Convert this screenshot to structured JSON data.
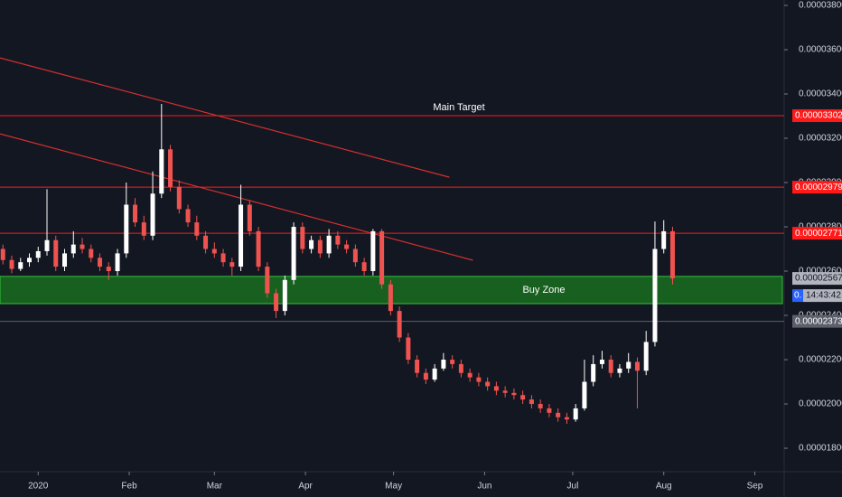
{
  "chart_data": {
    "type": "candlestick",
    "x": [
      -15,
      -12,
      -9,
      -6,
      -3,
      0,
      3,
      6,
      9,
      12,
      15,
      18,
      21,
      24,
      27,
      30,
      33,
      36,
      39,
      42,
      45,
      48,
      51,
      54,
      57,
      60,
      63,
      66,
      69,
      72,
      75,
      78,
      81,
      84,
      87,
      90,
      93,
      96,
      99,
      102,
      105,
      108,
      111,
      114,
      117,
      120,
      123,
      126,
      129,
      132,
      135,
      138,
      141,
      144,
      147,
      150,
      153,
      156,
      159,
      162,
      165,
      168,
      171,
      174,
      177,
      180,
      183,
      186,
      189,
      192,
      195,
      198,
      201,
      204,
      207,
      210,
      213,
      216
    ],
    "ohlc": [
      [
        2.72e-05,
        2.75e-05,
        2.68e-05,
        2.7e-05
      ],
      [
        2.7e-05,
        2.72e-05,
        2.63e-05,
        2.65e-05
      ],
      [
        2.65e-05,
        2.67e-05,
        2.59e-05,
        2.61e-05
      ],
      [
        2.61e-05,
        2.66e-05,
        2.6e-05,
        2.64e-05
      ],
      [
        2.64e-05,
        2.68e-05,
        2.62e-05,
        2.66e-05
      ],
      [
        2.66e-05,
        2.71e-05,
        2.64e-05,
        2.69e-05
      ],
      [
        2.69e-05,
        2.97e-05,
        2.67e-05,
        2.74e-05
      ],
      [
        2.74e-05,
        2.76e-05,
        2.6e-05,
        2.62e-05
      ],
      [
        2.62e-05,
        2.7e-05,
        2.6e-05,
        2.68e-05
      ],
      [
        2.68e-05,
        2.78e-05,
        2.66e-05,
        2.72e-05
      ],
      [
        2.72e-05,
        2.75e-05,
        2.68e-05,
        2.7e-05
      ],
      [
        2.7e-05,
        2.72e-05,
        2.64e-05,
        2.66e-05
      ],
      [
        2.66e-05,
        2.68e-05,
        2.6e-05,
        2.62e-05
      ],
      [
        2.62e-05,
        2.64e-05,
        2.56e-05,
        2.6e-05
      ],
      [
        2.6e-05,
        2.7e-05,
        2.58e-05,
        2.68e-05
      ],
      [
        2.68e-05,
        3e-05,
        2.66e-05,
        2.9e-05
      ],
      [
        2.9e-05,
        2.93e-05,
        2.8e-05,
        2.82e-05
      ],
      [
        2.82e-05,
        2.85e-05,
        2.74e-05,
        2.76e-05
      ],
      [
        2.76e-05,
        3.05e-05,
        2.74e-05,
        2.95e-05
      ],
      [
        2.95e-05,
        3.355e-05,
        2.93e-05,
        3.15e-05
      ],
      [
        3.15e-05,
        3.17e-05,
        2.96e-05,
        2.98e-05
      ],
      [
        2.98e-05,
        3.01e-05,
        2.86e-05,
        2.88e-05
      ],
      [
        2.88e-05,
        2.9e-05,
        2.8e-05,
        2.82e-05
      ],
      [
        2.82e-05,
        2.85e-05,
        2.74e-05,
        2.76e-05
      ],
      [
        2.76e-05,
        2.78e-05,
        2.68e-05,
        2.7e-05
      ],
      [
        2.7e-05,
        2.73e-05,
        2.66e-05,
        2.68e-05
      ],
      [
        2.68e-05,
        2.7e-05,
        2.62e-05,
        2.64e-05
      ],
      [
        2.64e-05,
        2.66e-05,
        2.58e-05,
        2.62e-05
      ],
      [
        2.62e-05,
        2.99e-05,
        2.6e-05,
        2.9e-05
      ],
      [
        2.9e-05,
        2.92e-05,
        2.76e-05,
        2.78e-05
      ],
      [
        2.78e-05,
        2.8e-05,
        2.6e-05,
        2.62e-05
      ],
      [
        2.62e-05,
        2.64e-05,
        2.48e-05,
        2.5e-05
      ],
      [
        2.5e-05,
        2.52e-05,
        2.388e-05,
        2.42e-05
      ],
      [
        2.42e-05,
        2.58e-05,
        2.4e-05,
        2.56e-05
      ],
      [
        2.56e-05,
        2.82e-05,
        2.54e-05,
        2.8e-05
      ],
      [
        2.8e-05,
        2.82e-05,
        2.68e-05,
        2.7e-05
      ],
      [
        2.7e-05,
        2.76e-05,
        2.68e-05,
        2.74e-05
      ],
      [
        2.74e-05,
        2.76e-05,
        2.66e-05,
        2.68e-05
      ],
      [
        2.68e-05,
        2.79e-05,
        2.66e-05,
        2.76e-05
      ],
      [
        2.76e-05,
        2.78e-05,
        2.7e-05,
        2.72e-05
      ],
      [
        2.72e-05,
        2.74e-05,
        2.68e-05,
        2.7e-05
      ],
      [
        2.7e-05,
        2.72e-05,
        2.62e-05,
        2.64e-05
      ],
      [
        2.64e-05,
        2.66e-05,
        2.58e-05,
        2.6e-05
      ],
      [
        2.6e-05,
        2.79e-05,
        2.58e-05,
        2.78e-05
      ],
      [
        2.78e-05,
        2.79e-05,
        2.52e-05,
        2.54e-05
      ],
      [
        2.54e-05,
        2.56e-05,
        2.4e-05,
        2.42e-05
      ],
      [
        2.42e-05,
        2.44e-05,
        2.28e-05,
        2.3e-05
      ],
      [
        2.3e-05,
        2.32e-05,
        2.18e-05,
        2.2e-05
      ],
      [
        2.2e-05,
        2.22e-05,
        2.12e-05,
        2.14e-05
      ],
      [
        2.14e-05,
        2.16e-05,
        2.09e-05,
        2.11e-05
      ],
      [
        2.11e-05,
        2.18e-05,
        2.1e-05,
        2.16e-05
      ],
      [
        2.16e-05,
        2.23e-05,
        2.15e-05,
        2.2e-05
      ],
      [
        2.2e-05,
        2.22e-05,
        2.16e-05,
        2.18e-05
      ],
      [
        2.18e-05,
        2.2e-05,
        2.12e-05,
        2.14e-05
      ],
      [
        2.14e-05,
        2.16e-05,
        2.1e-05,
        2.12e-05
      ],
      [
        2.12e-05,
        2.14e-05,
        2.08e-05,
        2.1e-05
      ],
      [
        2.1e-05,
        2.12e-05,
        2.06e-05,
        2.08e-05
      ],
      [
        2.08e-05,
        2.1e-05,
        2.04e-05,
        2.06e-05
      ],
      [
        2.06e-05,
        2.08e-05,
        2.03e-05,
        2.05e-05
      ],
      [
        2.05e-05,
        2.07e-05,
        2.02e-05,
        2.04e-05
      ],
      [
        2.04e-05,
        2.06e-05,
        2e-05,
        2.02e-05
      ],
      [
        2.02e-05,
        2.04e-05,
        1.98e-05,
        2e-05
      ],
      [
        2e-05,
        2.02e-05,
        1.96e-05,
        1.98e-05
      ],
      [
        1.98e-05,
        2e-05,
        1.94e-05,
        1.96e-05
      ],
      [
        1.96e-05,
        1.98e-05,
        1.92e-05,
        1.94e-05
      ],
      [
        1.94e-05,
        1.96e-05,
        1.91e-05,
        1.93e-05
      ],
      [
        1.93e-05,
        2e-05,
        1.92e-05,
        1.98e-05
      ],
      [
        1.98e-05,
        2.2e-05,
        1.97e-05,
        2.1e-05
      ],
      [
        2.1e-05,
        2.22e-05,
        2.08e-05,
        2.18e-05
      ],
      [
        2.18e-05,
        2.24e-05,
        2.16e-05,
        2.2e-05
      ],
      [
        2.2e-05,
        2.22e-05,
        2.12e-05,
        2.14e-05
      ],
      [
        2.14e-05,
        2.18e-05,
        2.12e-05,
        2.16e-05
      ],
      [
        2.16e-05,
        2.23e-05,
        2.14e-05,
        2.19e-05
      ],
      [
        2.19e-05,
        2.21e-05,
        1.98e-05,
        2.15e-05
      ],
      [
        2.15e-05,
        2.33e-05,
        2.13e-05,
        2.28e-05
      ],
      [
        2.28e-05,
        2.824e-05,
        2.26e-05,
        2.7e-05
      ],
      [
        2.7e-05,
        2.83e-05,
        2.68e-05,
        2.78e-05
      ],
      [
        2.78e-05,
        2.8e-05,
        2.54e-05,
        2.567e-05
      ]
    ],
    "up_color": "#ffffff",
    "down_color": "#ef5350",
    "xlim": [
      -13,
      254
    ],
    "xticks": [
      {
        "value": 0,
        "label": "2020"
      },
      {
        "value": 31,
        "label": "Feb"
      },
      {
        "value": 60,
        "label": "Mar"
      },
      {
        "value": 91,
        "label": "Apr"
      },
      {
        "value": 121,
        "label": "May"
      },
      {
        "value": 152,
        "label": "Jun"
      },
      {
        "value": 182,
        "label": "Jul"
      },
      {
        "value": 213,
        "label": "Aug"
      },
      {
        "value": 244,
        "label": "Sep"
      }
    ],
    "ylim": [
      1.694e-05,
      3.8245e-05
    ],
    "yticks": [
      {
        "value": 3.8e-05,
        "label": "0.00003800"
      },
      {
        "value": 3.6e-05,
        "label": "0.00003600"
      },
      {
        "value": 3.4e-05,
        "label": "0.00003400"
      },
      {
        "value": 3.2e-05,
        "label": "0.00003200"
      },
      {
        "value": 3e-05,
        "label": "0.00003000"
      },
      {
        "value": 2.8e-05,
        "label": "0.00002800"
      },
      {
        "value": 2.6e-05,
        "label": "0.00002600"
      },
      {
        "value": 2.4e-05,
        "label": "0.00002400"
      },
      {
        "value": 2.2e-05,
        "label": "0.00002200"
      },
      {
        "value": 2e-05,
        "label": "0.00002000"
      },
      {
        "value": 1.8e-05,
        "label": "0.00001800"
      }
    ],
    "trendlines": [
      {
        "x": [
          -13,
          140
        ],
        "y": [
          3.563e-05,
          3.024e-05
        ],
        "color": "#d32f2f"
      },
      {
        "x": [
          -13,
          148
        ],
        "y": [
          3.22e-05,
          2.649e-05
        ],
        "color": "#d32f2f"
      }
    ],
    "levels": [
      {
        "value": 3.302e-05,
        "color": "#ff1a1a",
        "label": "Main Target"
      },
      {
        "value": 2.979e-05,
        "color": "#ff1a1a"
      },
      {
        "value": 2.771e-05,
        "color": "#ff1a1a"
      },
      {
        "value": 2.373e-05,
        "color": "#5d606b"
      }
    ],
    "zone": {
      "label": "Buy Zone",
      "y": [
        2.453e-05,
        2.576e-05
      ],
      "color": "#1b7a1f",
      "border": "#35c23b"
    },
    "last_price": 2.567e-05,
    "countdown_prefix": "0.",
    "countdown": "14:43:42"
  }
}
